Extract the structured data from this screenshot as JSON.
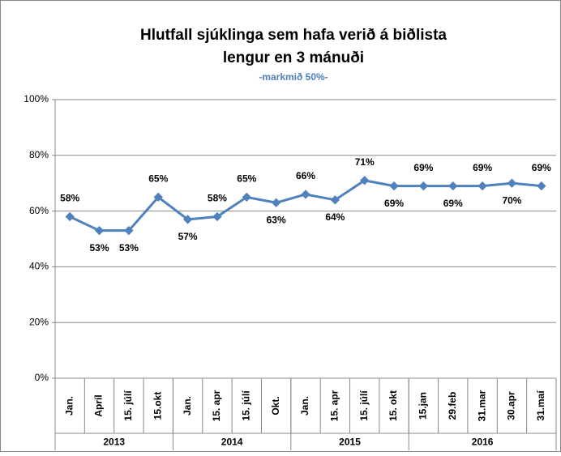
{
  "chart_data": {
    "type": "line",
    "title_lines": [
      "Hlutfall sjúklinga sem hafa verið á biðlista",
      "lengur en 3 mánuði"
    ],
    "subtitle": "-markmið 50%-",
    "groups": [
      {
        "name": "2013",
        "categories": [
          "Jan.",
          "Apríl",
          "15. júlí",
          "15.okt"
        ]
      },
      {
        "name": "2014",
        "categories": [
          "Jan.",
          "15. apr",
          "15. júlí",
          "Okt."
        ]
      },
      {
        "name": "2015",
        "categories": [
          "Jan.",
          "15. apr",
          "15. júlí",
          "15. okt"
        ]
      },
      {
        "name": "2016",
        "categories": [
          "15.jan",
          "29.feb",
          "31.mar",
          "30.apr",
          "31.maí"
        ]
      }
    ],
    "values": [
      58,
      53,
      53,
      65,
      57,
      58,
      65,
      63,
      66,
      64,
      71,
      69,
      69,
      69,
      69,
      70,
      69
    ],
    "value_labels": [
      "58%",
      "53%",
      "53%",
      "65%",
      "57%",
      "58%",
      "65%",
      "63%",
      "66%",
      "64%",
      "71%",
      "69%",
      "69%",
      "69%",
      "69%",
      "70%",
      "69%"
    ],
    "color": "#4f81bd",
    "ylim": [
      0,
      100
    ],
    "yticks": [
      {
        "value": 0,
        "label": "0%"
      },
      {
        "value": 20,
        "label": "20%"
      },
      {
        "value": 40,
        "label": "40%"
      },
      {
        "value": 60,
        "label": "60%"
      },
      {
        "value": 80,
        "label": "80%"
      },
      {
        "value": 100,
        "label": "100%"
      }
    ],
    "grid": true
  }
}
